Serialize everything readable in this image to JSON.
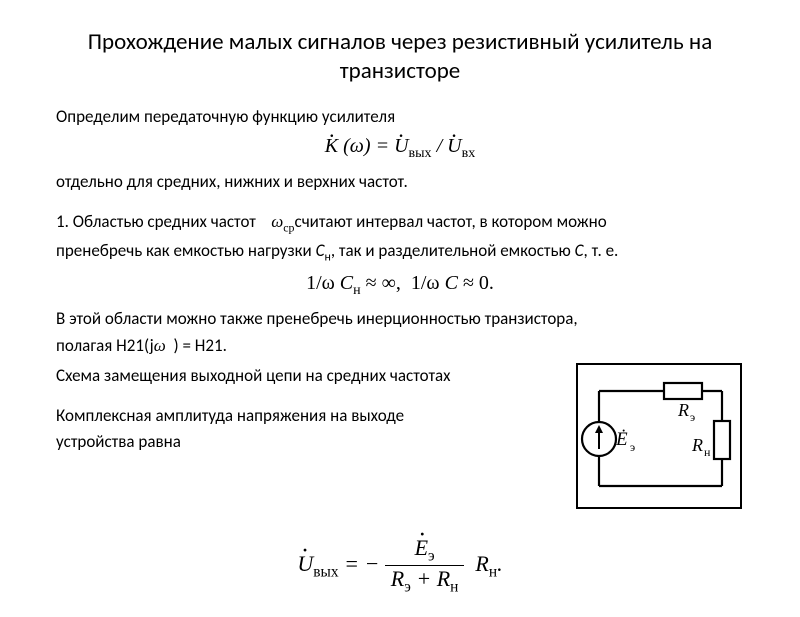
{
  "title": "Прохождение малых сигналов через резистивный усилитель на транзисторе",
  "p1": "Определим передаточную функцию усилителя",
  "formula1_html": "<span class='dotacc'>K</span> (ω) = <span class='dotacc'>U</span><span class='sub'>вых</span> / <span class='dotacc'>U</span><span class='sub'>вх</span>",
  "p2": "отдельно для средних, нижних и верхних частот.",
  "p3a": "1. Областью средних частот",
  "omega_cp": "ω",
  "omega_cp_sub": "ср",
  "p3b": "считают интервал частот, в котором можно",
  "p3c_html": "пренебречь как емкостью нагрузки <i>C<span class='sub'>н</span></i>, так и разделительной емкостью <i>C</i>, т. е.",
  "formula2_html": "1/ω <i>C</i><span class='sub'>н</span> ≈ ∞,&nbsp; 1/ω <i>C</i> ≈ 0.",
  "p4": "В этой области можно также пренебречь инерционностью транзистора,",
  "p5a": "полагая H21(j",
  "p5_omega": "ω",
  "p5b": ") = H21.",
  "p6": "Схема замещения выходной цепи на средних частотах",
  "p7": "Комплексная амплитуда напряжения на выходе",
  "p8": "устройства равна",
  "formula3_left_html": "<span class='dotacc'>U</span><span class='sub'>вых</span> = −",
  "formula3_num_html": "<span class='dotacc'>E</span><span class='sub'>э</span>",
  "formula3_den_html": "R<span class='sub'>э</span> + R<span class='sub'>н</span>",
  "formula3_right_html": "&nbsp;R<span class='sub'>н</span>.",
  "circuit": {
    "E_label": "Ė",
    "E_sub": "э",
    "R_top": "R",
    "R_top_sub": "э",
    "R_right": "R",
    "R_right_sub": "н",
    "stroke": "#000000",
    "stroke_w": 2.2,
    "bg": "#ffffff",
    "font_family": "Times New Roman, serif",
    "font_size": 18
  },
  "colors": {
    "text": "#000000",
    "bg": "#ffffff"
  }
}
